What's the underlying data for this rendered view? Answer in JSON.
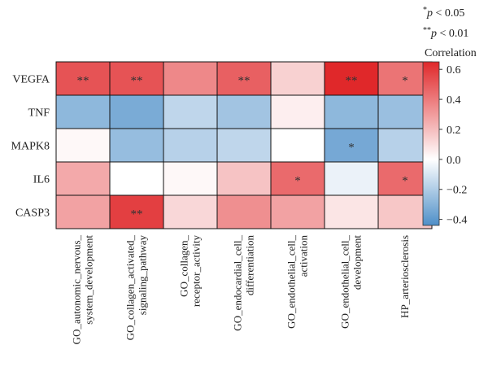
{
  "chart_data": {
    "type": "heatmap",
    "title": "",
    "rows": [
      "VEGFA",
      "TNF",
      "MAPK8",
      "IL6",
      "CASP3"
    ],
    "columns": [
      [
        "GO_autonomic_nervous_",
        "system_development"
      ],
      [
        "GO_collagen_activated_",
        "signaling_pathway"
      ],
      [
        "GO_collagen_",
        "receptor_activity"
      ],
      [
        "GO_endocardial_cell_",
        "differentiation"
      ],
      [
        "GO_endothelial_cell_",
        "activation"
      ],
      [
        "GO_endothelial_cell_",
        "development"
      ],
      [
        "HP_arteriosclerosis"
      ]
    ],
    "values": [
      [
        0.52,
        0.52,
        0.36,
        0.48,
        0.14,
        0.65,
        0.42
      ],
      [
        -0.28,
        -0.33,
        -0.16,
        -0.23,
        0.05,
        -0.28,
        -0.25
      ],
      [
        0.02,
        -0.26,
        -0.18,
        -0.16,
        0.0,
        -0.34,
        -0.18
      ],
      [
        0.26,
        0.0,
        0.02,
        0.18,
        0.45,
        -0.05,
        0.45
      ],
      [
        0.28,
        0.58,
        0.12,
        0.34,
        0.28,
        0.08,
        0.17
      ]
    ],
    "stars": [
      [
        "**",
        "**",
        "",
        "**",
        "",
        "**",
        "*"
      ],
      [
        "",
        "",
        "",
        "",
        "",
        "",
        ""
      ],
      [
        "",
        "",
        "",
        "",
        "",
        "*",
        ""
      ],
      [
        "",
        "",
        "",
        "",
        "*",
        "",
        "*"
      ],
      [
        "",
        "**",
        "",
        "",
        "",
        "",
        ""
      ]
    ],
    "colorbar": {
      "title": "Correlation",
      "min": -0.44,
      "max": 0.65,
      "ticks": [
        0.6,
        0.4,
        0.2,
        0.0,
        -0.2,
        -0.4
      ],
      "tick_labels": [
        "0.6",
        "0.4",
        "0.2",
        "0.0",
        "−0.2",
        "−0.4"
      ],
      "low_color": "#4e8fc8",
      "mid_color": "#ffffff",
      "high_color": "#e0282a"
    },
    "legend_notes": [
      {
        "stars": "*",
        "text": " < 0.05"
      },
      {
        "stars": "**",
        "text": " < 0.01"
      }
    ],
    "legend_p": "p"
  }
}
